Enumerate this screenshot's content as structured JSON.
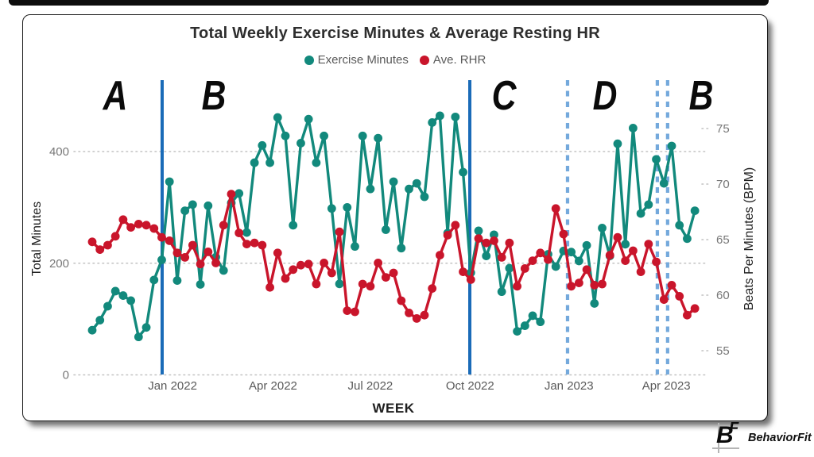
{
  "chart_data": {
    "type": "line",
    "title": "Total Weekly Exercise Minutes & Average Resting HR",
    "x_axis": {
      "label": "WEEK",
      "ticks": [
        {
          "label": "Jan 2022",
          "week": 11.4
        },
        {
          "label": "Apr 2022",
          "week": 24.4
        },
        {
          "label": "Jul 2022",
          "week": 37.0
        },
        {
          "label": "Oct 2022",
          "week": 49.9
        },
        {
          "label": "Jan 2023",
          "week": 62.7
        },
        {
          "label": "Apr 2023",
          "week": 75.3
        }
      ]
    },
    "y_left": {
      "label": "Total Minutes",
      "ticks": [
        0,
        200,
        400
      ],
      "range": [
        0,
        530
      ]
    },
    "y_right": {
      "label": "Beats Per Minutes (BPM)",
      "ticks": [
        55,
        60,
        65,
        70,
        75
      ],
      "range": [
        53,
        77
      ]
    },
    "weeks": 79,
    "series": [
      {
        "name": "Exercise Minutes",
        "axis": "left",
        "color": "#12897C",
        "values": [
          80,
          98,
          123,
          150,
          142,
          133,
          68,
          85,
          170,
          206,
          346,
          169,
          294,
          305,
          162,
          303,
          211,
          187,
          308,
          325,
          255,
          380,
          411,
          380,
          461,
          428,
          268,
          415,
          458,
          380,
          428,
          298,
          163,
          300,
          230,
          428,
          333,
          424,
          260,
          346,
          227,
          333,
          343,
          319,
          452,
          464,
          254,
          462,
          363,
          183,
          258,
          213,
          251,
          149,
          191,
          78,
          88,
          106,
          95,
          216,
          194,
          222,
          220,
          204,
          232,
          128,
          263,
          213,
          414,
          234,
          442,
          289,
          305,
          386,
          343,
          410,
          268,
          244,
          294
        ]
      },
      {
        "name": "Ave. RHR",
        "axis": "right",
        "color": "#C9152B",
        "values": [
          64.8,
          64.1,
          64.5,
          65.3,
          66.8,
          66.1,
          66.4,
          66.3,
          66.0,
          65.2,
          64.9,
          63.8,
          63.4,
          64.5,
          62.8,
          63.9,
          62.9,
          66.3,
          69.1,
          65.6,
          64.6,
          64.7,
          64.5,
          60.7,
          63.8,
          61.5,
          62.3,
          62.7,
          62.8,
          61.0,
          62.9,
          62.0,
          65.7,
          58.6,
          58.5,
          61.0,
          60.8,
          62.9,
          61.6,
          62.0,
          59.5,
          58.4,
          57.9,
          58.2,
          60.6,
          63.6,
          65.4,
          66.3,
          62.1,
          61.4,
          65.1,
          64.7,
          64.9,
          63.4,
          64.7,
          60.8,
          62.4,
          63.1,
          63.8,
          63.2,
          67.8,
          65.5,
          60.8,
          61.1,
          62.3,
          60.9,
          61.0,
          63.6,
          65.2,
          63.1,
          64.0,
          62.1,
          64.6,
          63.0,
          59.6,
          60.9,
          59.9,
          58.2,
          58.8
        ]
      }
    ],
    "phase_lines": [
      {
        "week": 10.05,
        "style": "solid"
      },
      {
        "week": 49.87,
        "style": "solid"
      },
      {
        "week": 62.52,
        "style": "dashed"
      },
      {
        "week": 74.14,
        "style": "dashed"
      },
      {
        "week": 75.47,
        "style": "dashed"
      }
    ],
    "phase_labels": [
      {
        "text": "A",
        "week": 4.0
      },
      {
        "text": "B",
        "week": 16.7
      },
      {
        "text": "C",
        "week": 54.3
      },
      {
        "text": "D",
        "week": 67.4
      },
      {
        "text": "B",
        "week": 79.8
      }
    ],
    "legend_position": "top",
    "grid": "dotted",
    "colors": {
      "solid_phase_line": "#1A6BB8",
      "dashed_phase_line": "#74A9DC",
      "gridline": "#c2c2c2"
    }
  },
  "footer": {
    "brand": "BehaviorFit",
    "mark_b": "B",
    "mark_f": "F"
  }
}
